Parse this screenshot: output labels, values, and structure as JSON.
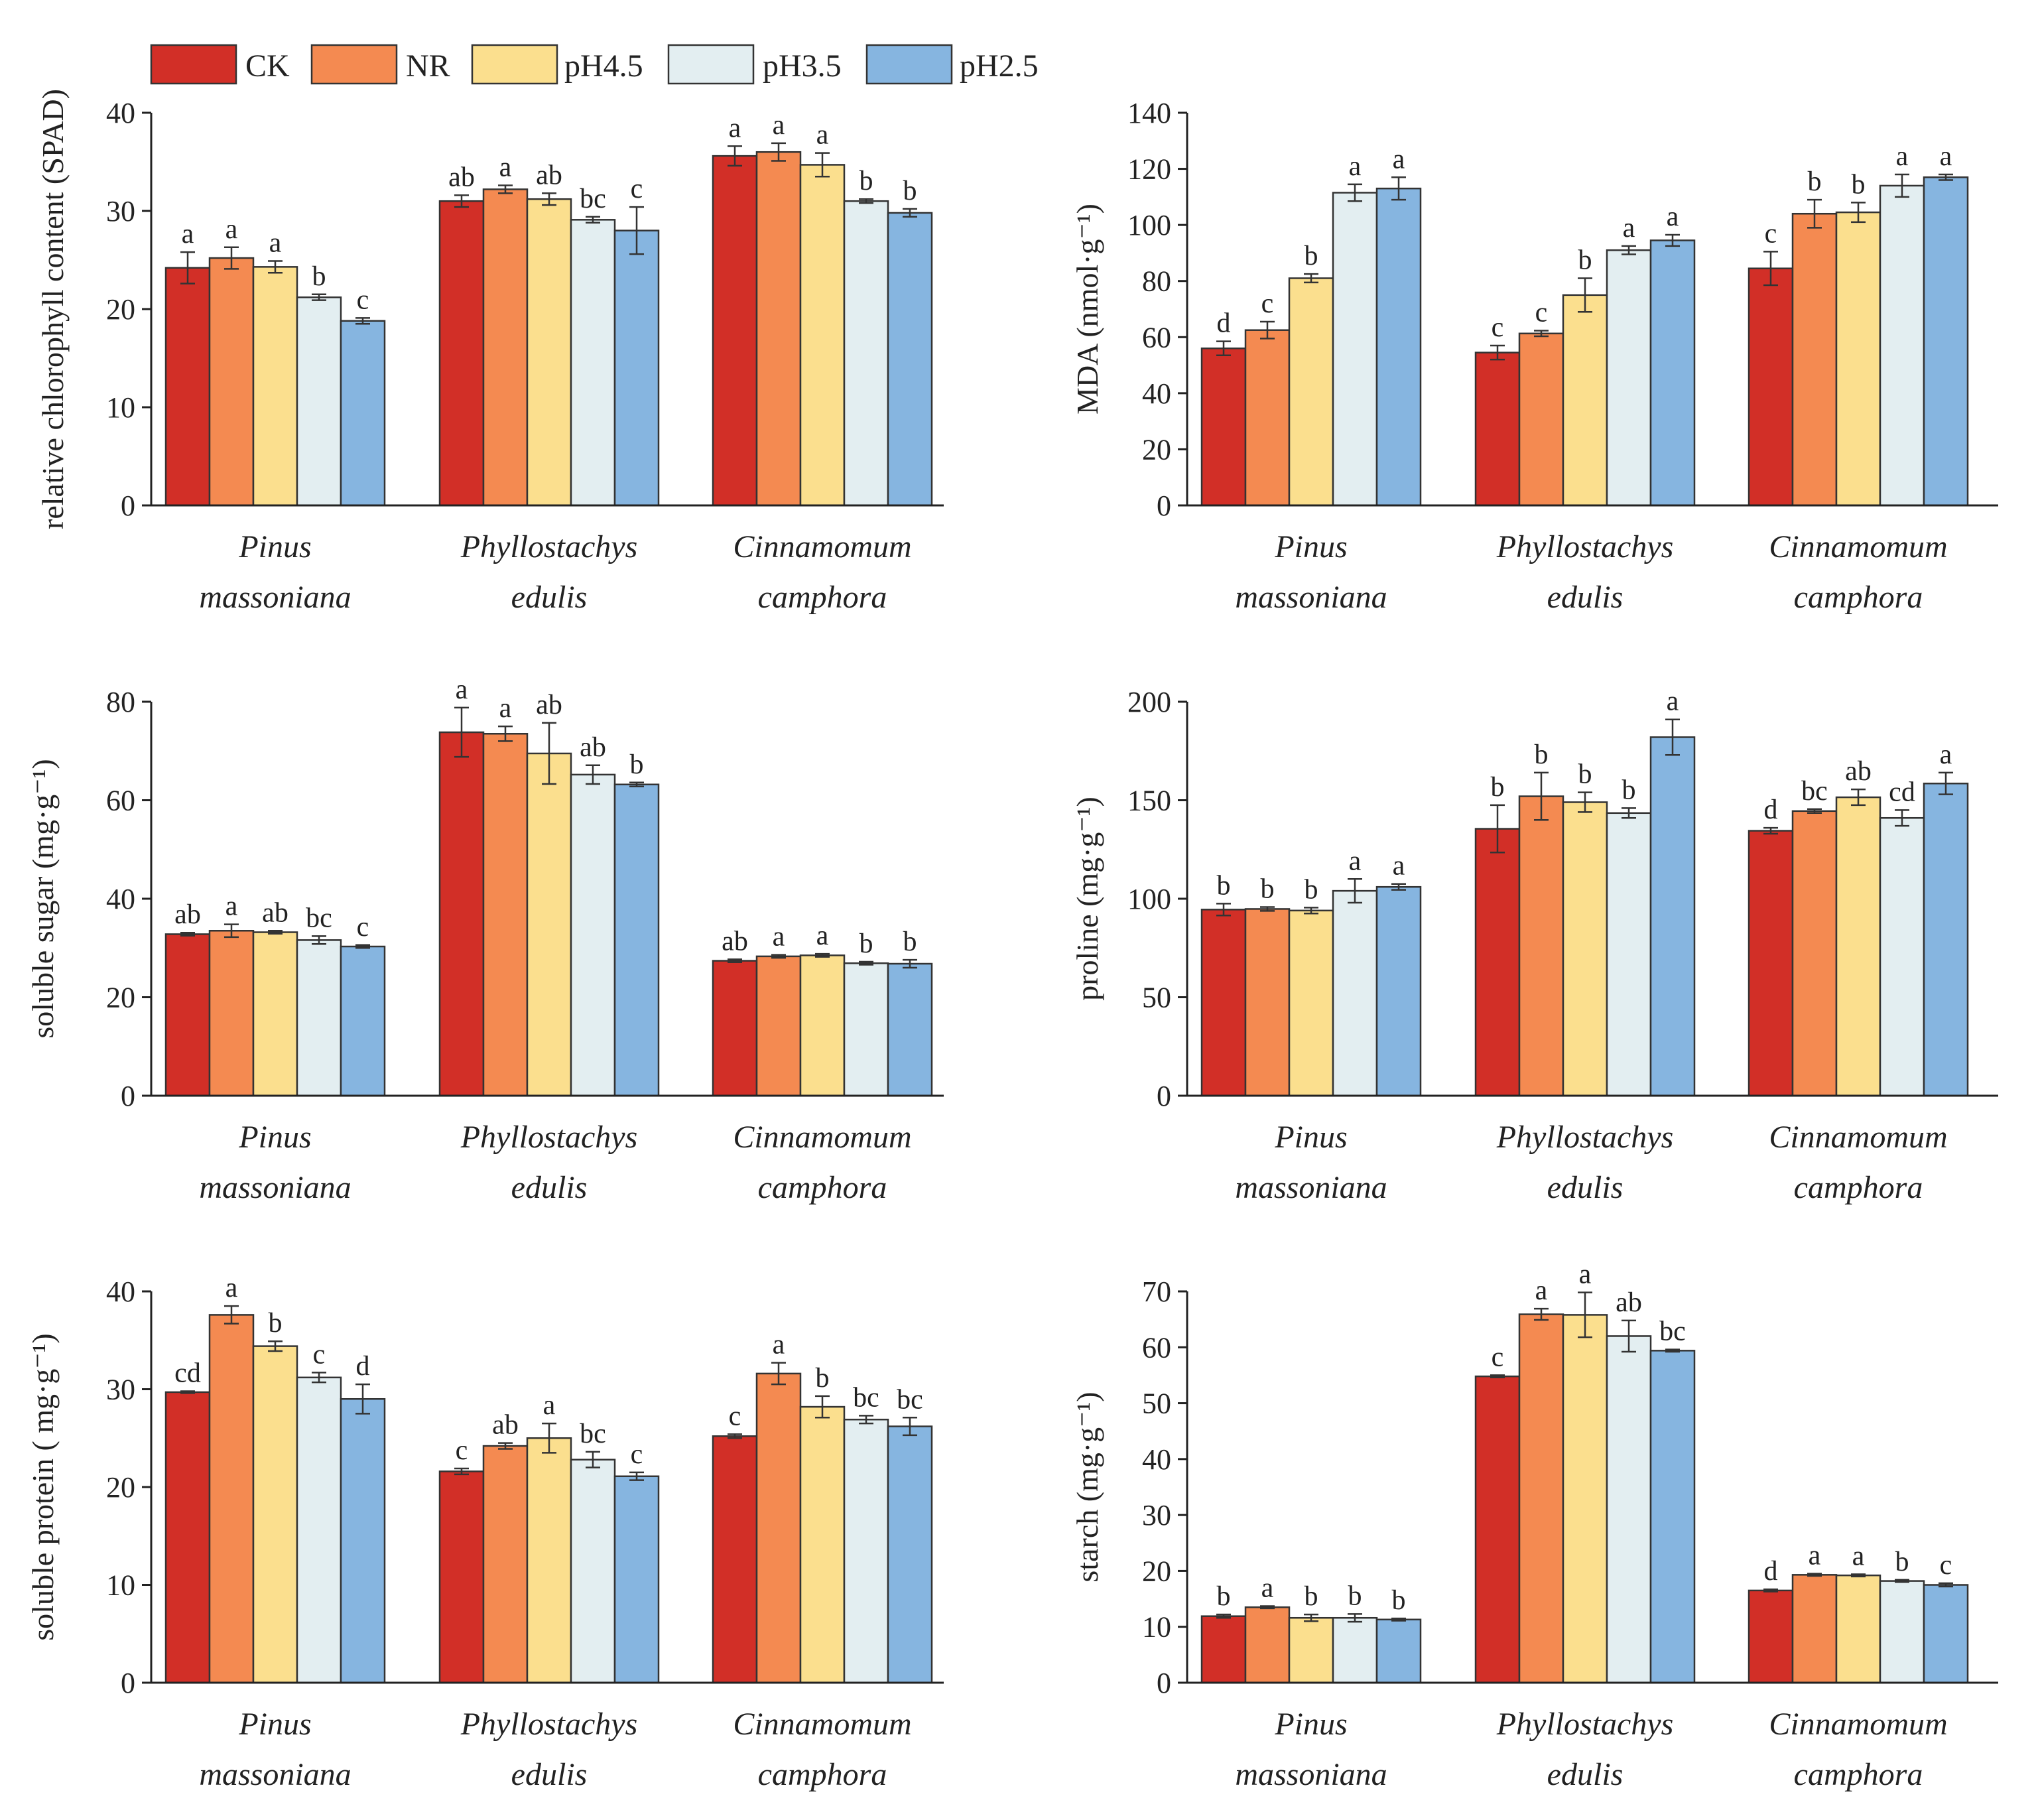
{
  "legend": {
    "items": [
      {
        "label": "CK",
        "color": "#d22f27"
      },
      {
        "label": "NR",
        "color": "#f48a51"
      },
      {
        "label": "pH4.5",
        "color": "#fbdf8e"
      },
      {
        "label": "pH3.5",
        "color": "#e3eef1"
      },
      {
        "label": "pH2.5",
        "color": "#86b5e0"
      }
    ]
  },
  "chart_data": [
    {
      "type": "bar",
      "ylabel": "relative chlorophyll content (SPAD)",
      "ylim": [
        0,
        40
      ],
      "yticks": [
        0,
        10,
        20,
        30,
        40
      ],
      "categories": [
        [
          "Pinus",
          "massoniana"
        ],
        [
          "Phyllostachys",
          "edulis"
        ],
        [
          "Cinnamomum",
          "camphora"
        ]
      ],
      "series": [
        {
          "name": "CK",
          "values": [
            24.2,
            31.0,
            35.6
          ],
          "errors": [
            1.6,
            0.6,
            1.0
          ],
          "letters": [
            "a",
            "ab",
            "a"
          ]
        },
        {
          "name": "NR",
          "values": [
            25.2,
            32.2,
            36.0
          ],
          "errors": [
            1.1,
            0.4,
            0.9
          ],
          "letters": [
            "a",
            "a",
            "a"
          ]
        },
        {
          "name": "pH4.5",
          "values": [
            24.3,
            31.2,
            34.7
          ],
          "errors": [
            0.6,
            0.6,
            1.2
          ],
          "letters": [
            "a",
            "ab",
            "a"
          ]
        },
        {
          "name": "pH3.5",
          "values": [
            21.2,
            29.1,
            31.0
          ],
          "errors": [
            0.3,
            0.3,
            0.2
          ],
          "letters": [
            "b",
            "bc",
            "b"
          ]
        },
        {
          "name": "pH2.5",
          "values": [
            18.8,
            28.0,
            29.8
          ],
          "errors": [
            0.3,
            2.4,
            0.4
          ],
          "letters": [
            "c",
            "c",
            "b"
          ]
        }
      ]
    },
    {
      "type": "bar",
      "ylabel": "MDA (nmol·g⁻¹)",
      "ylim": [
        0,
        140
      ],
      "yticks": [
        0,
        20,
        40,
        60,
        80,
        100,
        120,
        140
      ],
      "categories": [
        [
          "Pinus",
          "massoniana"
        ],
        [
          "Phyllostachys",
          "edulis"
        ],
        [
          "Cinnamomum",
          "camphora"
        ]
      ],
      "series": [
        {
          "name": "CK",
          "values": [
            56.0,
            54.5,
            84.5
          ],
          "errors": [
            2.5,
            2.5,
            6.0
          ],
          "letters": [
            "d",
            "c",
            "c"
          ]
        },
        {
          "name": "NR",
          "values": [
            62.5,
            61.3,
            104.0
          ],
          "errors": [
            3.0,
            1.0,
            5.0
          ],
          "letters": [
            "c",
            "c",
            "b"
          ]
        },
        {
          "name": "pH4.5",
          "values": [
            81.0,
            75.0,
            104.5
          ],
          "errors": [
            1.5,
            6.0,
            3.5
          ],
          "letters": [
            "b",
            "b",
            "b"
          ]
        },
        {
          "name": "pH3.5",
          "values": [
            111.5,
            91.0,
            114.0
          ],
          "errors": [
            3.0,
            1.5,
            4.0
          ],
          "letters": [
            "a",
            "a",
            "a"
          ]
        },
        {
          "name": "pH2.5",
          "values": [
            113.0,
            94.5,
            117.0
          ],
          "errors": [
            4.0,
            2.0,
            1.0
          ],
          "letters": [
            "a",
            "a",
            "a"
          ]
        }
      ]
    },
    {
      "type": "bar",
      "ylabel": "soluble sugar (mg·g⁻¹)",
      "ylim": [
        0,
        80
      ],
      "yticks": [
        0,
        20,
        40,
        60,
        80
      ],
      "categories": [
        [
          "Pinus",
          "massoniana"
        ],
        [
          "Phyllostachys",
          "edulis"
        ],
        [
          "Cinnamomum",
          "camphora"
        ]
      ],
      "series": [
        {
          "name": "CK",
          "values": [
            32.8,
            73.8,
            27.4
          ],
          "errors": [
            0.3,
            5.0,
            0.3
          ],
          "letters": [
            "ab",
            "a",
            "ab"
          ]
        },
        {
          "name": "NR",
          "values": [
            33.5,
            73.5,
            28.3
          ],
          "errors": [
            1.3,
            1.5,
            0.3
          ],
          "letters": [
            "a",
            "a",
            "a"
          ]
        },
        {
          "name": "pH4.5",
          "values": [
            33.2,
            69.5,
            28.5
          ],
          "errors": [
            0.3,
            6.2,
            0.3
          ],
          "letters": [
            "ab",
            "ab",
            "a"
          ]
        },
        {
          "name": "pH3.5",
          "values": [
            31.6,
            65.2,
            26.9
          ],
          "errors": [
            0.8,
            1.9,
            0.3
          ],
          "letters": [
            "bc",
            "ab",
            "b"
          ]
        },
        {
          "name": "pH2.5",
          "values": [
            30.3,
            63.2,
            26.8
          ],
          "errors": [
            0.3,
            0.4,
            0.8
          ],
          "letters": [
            "c",
            "b",
            "b"
          ]
        }
      ]
    },
    {
      "type": "bar",
      "ylabel": "proline (mg·g⁻¹)",
      "ylim": [
        0,
        200
      ],
      "yticks": [
        0,
        50,
        100,
        150,
        200
      ],
      "categories": [
        [
          "Pinus",
          "massoniana"
        ],
        [
          "Phyllostachys",
          "edulis"
        ],
        [
          "Cinnamomum",
          "camphora"
        ]
      ],
      "series": [
        {
          "name": "CK",
          "values": [
            94.5,
            135.5,
            134.5
          ],
          "errors": [
            3.0,
            12.0,
            1.5
          ],
          "letters": [
            "b",
            "b",
            "d"
          ]
        },
        {
          "name": "NR",
          "values": [
            94.8,
            152.0,
            144.5
          ],
          "errors": [
            1.0,
            12.0,
            1.0
          ],
          "letters": [
            "b",
            "b",
            "bc"
          ]
        },
        {
          "name": "pH4.5",
          "values": [
            94.0,
            149.0,
            151.5
          ],
          "errors": [
            1.5,
            5.0,
            4.0
          ],
          "letters": [
            "b",
            "b",
            "ab"
          ]
        },
        {
          "name": "pH3.5",
          "values": [
            104.0,
            143.5,
            141.0
          ],
          "errors": [
            6.0,
            2.5,
            4.0
          ],
          "letters": [
            "a",
            "b",
            "cd"
          ]
        },
        {
          "name": "pH2.5",
          "values": [
            106.0,
            182.0,
            158.5
          ],
          "errors": [
            1.5,
            9.0,
            5.5
          ],
          "letters": [
            "a",
            "a",
            "a"
          ]
        }
      ]
    },
    {
      "type": "bar",
      "ylabel": "soluble protein ( mg·g⁻¹)",
      "ylim": [
        0,
        40
      ],
      "yticks": [
        0,
        10,
        20,
        30,
        40
      ],
      "categories": [
        [
          "Pinus",
          "massoniana"
        ],
        [
          "Phyllostachys",
          "edulis"
        ],
        [
          "Cinnamomum",
          "camphora"
        ]
      ],
      "series": [
        {
          "name": "CK",
          "values": [
            29.7,
            21.6,
            25.2
          ],
          "errors": [
            0.1,
            0.3,
            0.2
          ],
          "letters": [
            "cd",
            "c",
            "c"
          ]
        },
        {
          "name": "NR",
          "values": [
            37.6,
            24.2,
            31.6
          ],
          "errors": [
            0.9,
            0.3,
            1.1
          ],
          "letters": [
            "a",
            "ab",
            "a"
          ]
        },
        {
          "name": "pH4.5",
          "values": [
            34.4,
            25.0,
            28.2
          ],
          "errors": [
            0.5,
            1.5,
            1.1
          ],
          "letters": [
            "b",
            "a",
            "b"
          ]
        },
        {
          "name": "pH3.5",
          "values": [
            31.2,
            22.8,
            26.9
          ],
          "errors": [
            0.5,
            0.8,
            0.4
          ],
          "letters": [
            "c",
            "bc",
            "bc"
          ]
        },
        {
          "name": "pH2.5",
          "values": [
            29.0,
            21.1,
            26.2
          ],
          "errors": [
            1.5,
            0.4,
            0.9
          ],
          "letters": [
            "d",
            "c",
            "bc"
          ]
        }
      ]
    },
    {
      "type": "bar",
      "ylabel": "starch (mg·g⁻¹)",
      "ylim": [
        0,
        70
      ],
      "yticks": [
        0,
        10,
        20,
        30,
        40,
        50,
        60,
        70
      ],
      "categories": [
        [
          "Pinus",
          "massoniana"
        ],
        [
          "Phyllostachys",
          "edulis"
        ],
        [
          "Cinnamomum",
          "camphora"
        ]
      ],
      "series": [
        {
          "name": "CK",
          "values": [
            11.9,
            54.8,
            16.5
          ],
          "errors": [
            0.3,
            0.2,
            0.2
          ],
          "letters": [
            "b",
            "c",
            "d"
          ]
        },
        {
          "name": "NR",
          "values": [
            13.5,
            65.9,
            19.3
          ],
          "errors": [
            0.2,
            1.0,
            0.2
          ],
          "letters": [
            "a",
            "a",
            "a"
          ]
        },
        {
          "name": "pH4.5",
          "values": [
            11.6,
            65.8,
            19.2
          ],
          "errors": [
            0.6,
            4.0,
            0.2
          ],
          "letters": [
            "b",
            "a",
            "a"
          ]
        },
        {
          "name": "pH3.5",
          "values": [
            11.6,
            62.0,
            18.2
          ],
          "errors": [
            0.7,
            2.8,
            0.2
          ],
          "letters": [
            "b",
            "ab",
            "b"
          ]
        },
        {
          "name": "pH2.5",
          "values": [
            11.3,
            59.4,
            17.5
          ],
          "errors": [
            0.2,
            0.2,
            0.3
          ],
          "letters": [
            "b",
            "bc",
            "c"
          ]
        }
      ]
    }
  ]
}
